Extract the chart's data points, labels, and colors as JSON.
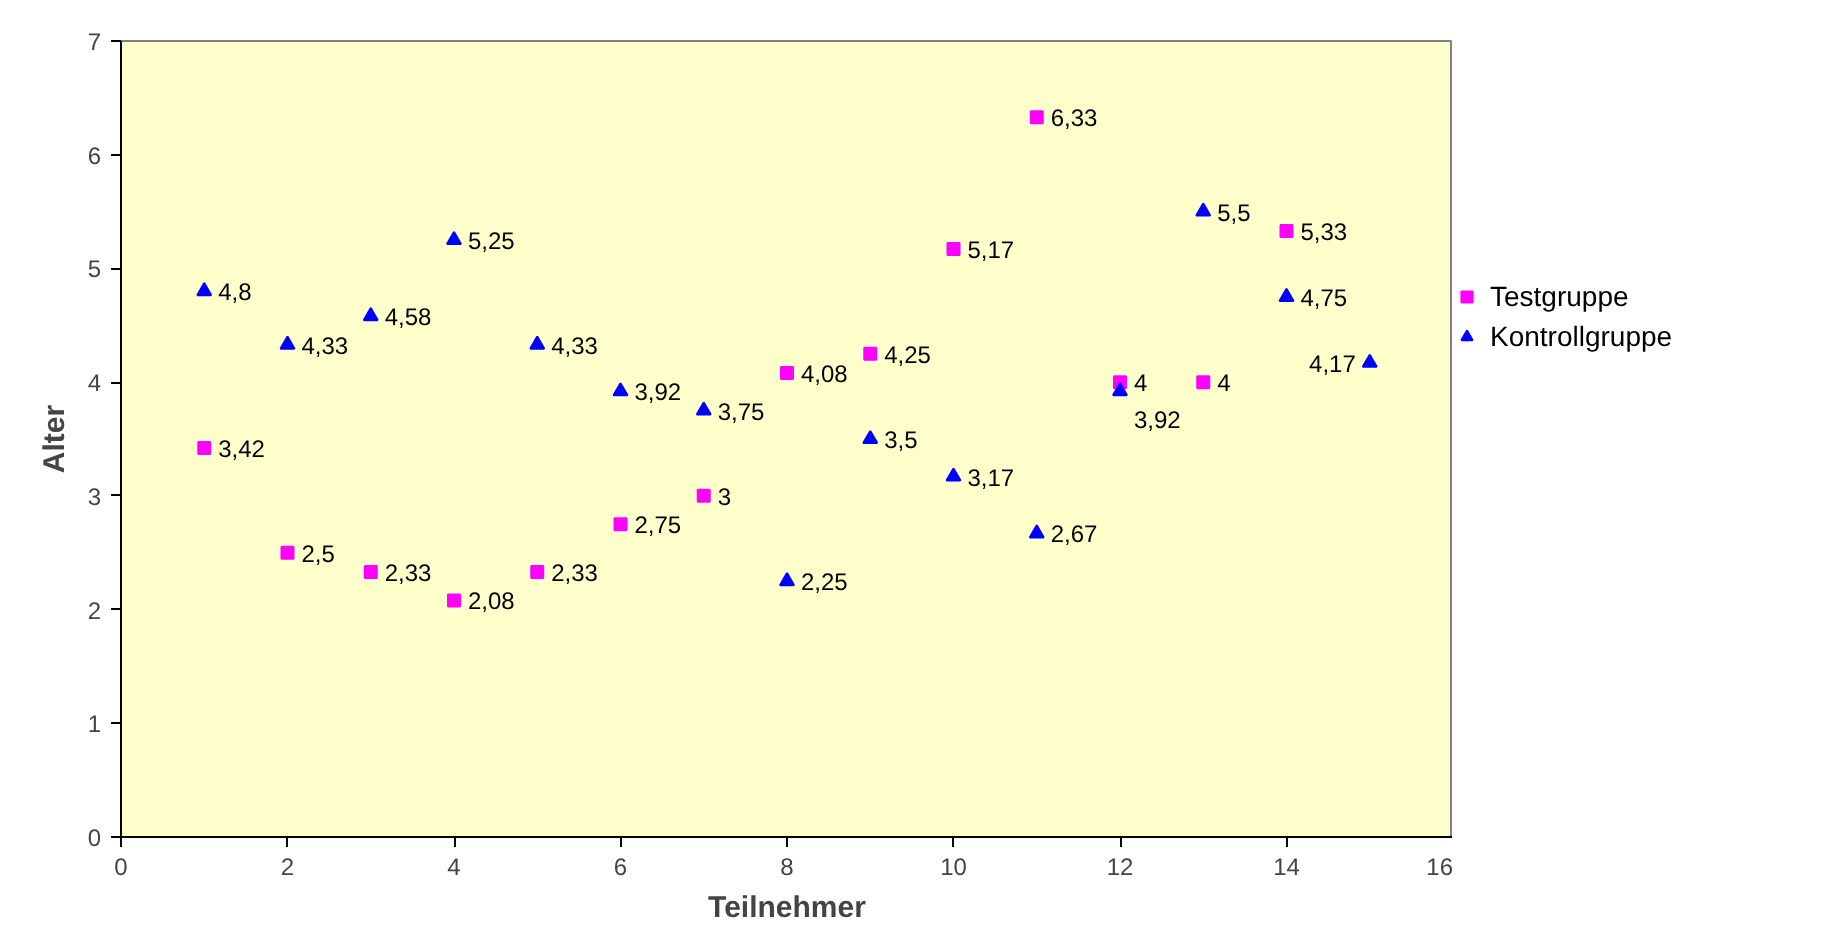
{
  "chart_data": {
    "type": "scatter",
    "xlabel": "Teilnehmer",
    "ylabel": "Alter",
    "xlim": [
      0,
      16
    ],
    "ylim": [
      0,
      7
    ],
    "xticks": [
      0,
      2,
      4,
      6,
      8,
      10,
      12,
      14,
      16
    ],
    "yticks": [
      0,
      1,
      2,
      3,
      4,
      5,
      6,
      7
    ],
    "grid": false,
    "legend": "right",
    "series": [
      {
        "name": "Testgruppe",
        "color": "#ff00ff",
        "marker": "square",
        "x": [
          1,
          2,
          3,
          4,
          5,
          6,
          7,
          8,
          9,
          10,
          11,
          12,
          13,
          14
        ],
        "values": [
          3.42,
          2.5,
          2.33,
          2.08,
          2.33,
          2.75,
          3,
          4.08,
          4.25,
          5.17,
          6.33,
          4,
          4,
          5.33
        ],
        "value_labels": [
          "3,42",
          "2,5",
          "2,33",
          "2,08",
          "2,33",
          "2,75",
          "3",
          "4,08",
          "4,25",
          "5,17",
          "6,33",
          "4",
          "4",
          "5,33"
        ]
      },
      {
        "name": "Kontrollgruppe",
        "color": "#0000ff",
        "marker": "triangle",
        "x": [
          1,
          2,
          3,
          4,
          5,
          6,
          7,
          8,
          9,
          10,
          11,
          12,
          13,
          14,
          15
        ],
        "values": [
          4.8,
          4.33,
          4.58,
          5.25,
          4.33,
          3.92,
          3.75,
          2.25,
          3.5,
          3.17,
          2.67,
          3.92,
          5.5,
          4.75,
          4.17
        ],
        "value_labels": [
          "4,8",
          "4,33",
          "4,58",
          "5,25",
          "4,33",
          "3,92",
          "3,75",
          "2,25",
          "3,5",
          "3,17",
          "2,67",
          "3,92",
          "5,5",
          "4,75",
          "4,17"
        ]
      }
    ]
  }
}
